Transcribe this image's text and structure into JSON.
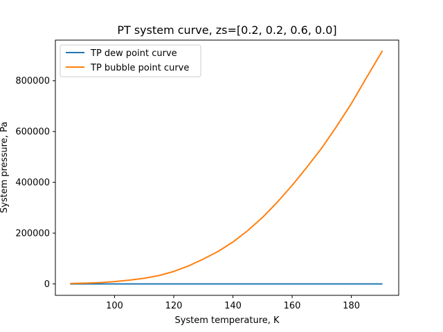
{
  "chart_data": {
    "type": "line",
    "title": "PT system curve, zs=[0.2, 0.2, 0.6, 0.0]",
    "xlabel": "System temperature, K",
    "ylabel": "System pressure, Pa",
    "xlim": [
      80.0,
      196.0
    ],
    "ylim": [
      -45000,
      960000
    ],
    "x_ticks": [
      100,
      120,
      140,
      160,
      180
    ],
    "y_ticks": [
      0,
      200000,
      400000,
      600000,
      800000
    ],
    "grid": false,
    "legend_position": "upper left",
    "series": [
      {
        "name": "TP dew point curve",
        "color": "#1f77b4",
        "x": [
          85,
          95,
          105,
          115,
          125,
          135,
          145,
          155,
          165,
          175,
          185,
          190.5
        ],
        "y": [
          2,
          3,
          4,
          5,
          6,
          7,
          8,
          9,
          10,
          11,
          12,
          12
        ]
      },
      {
        "name": "TP bubble point curve",
        "color": "#ff7f0e",
        "x": [
          85,
          90,
          95,
          100,
          105,
          110,
          115,
          120,
          125,
          130,
          135,
          140,
          145,
          150,
          155,
          160,
          165,
          170,
          175,
          180,
          185,
          190.5
        ],
        "y": [
          1500,
          3000,
          5000,
          9000,
          15000,
          22000,
          33000,
          49000,
          71000,
          98000,
          128000,
          165000,
          210000,
          262000,
          322000,
          388000,
          460000,
          535000,
          620000,
          710000,
          810000,
          918000
        ]
      }
    ]
  }
}
